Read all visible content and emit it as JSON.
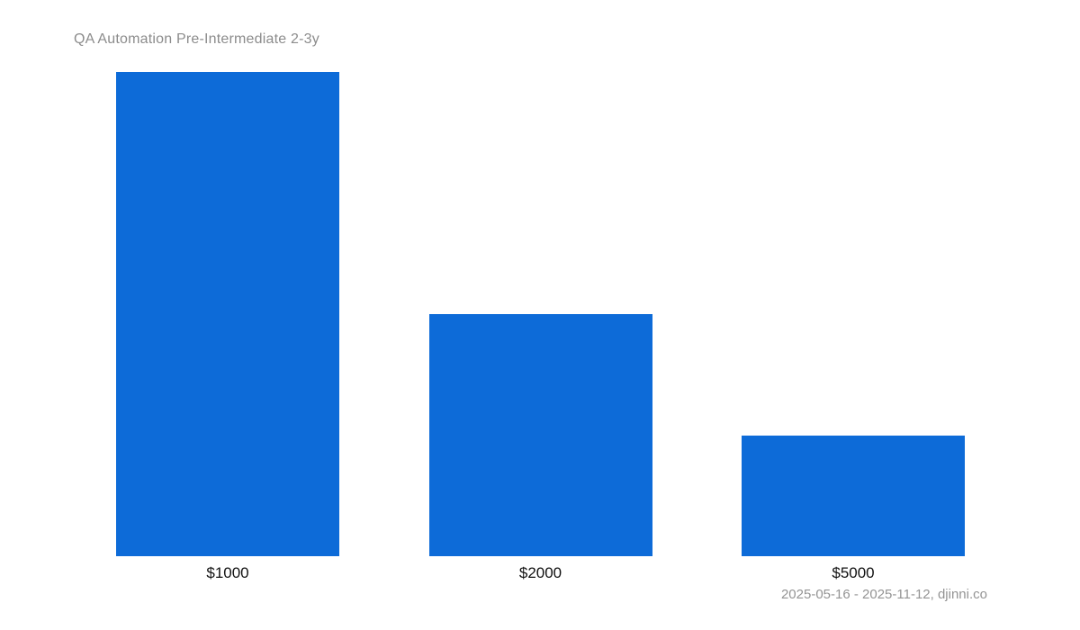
{
  "page": {
    "background": "#ffffff"
  },
  "chart_data": {
    "type": "bar",
    "title": "QA Automation Pre-Intermediate 2-3y",
    "categories": [
      "$1000",
      "$2000",
      "$5000"
    ],
    "values": [
      100,
      50,
      25
    ],
    "xlabel": "",
    "ylabel": "",
    "ylim": [
      0,
      100
    ],
    "grid": false,
    "legend": false,
    "orientation": "vertical",
    "bar_color": "#0d6bd8",
    "title_color": "#8c8c8c",
    "category_label_color": "#111111",
    "footnote": "2025-05-16 - 2025-11-12, djinni.co",
    "footnote_color": "#949494"
  }
}
